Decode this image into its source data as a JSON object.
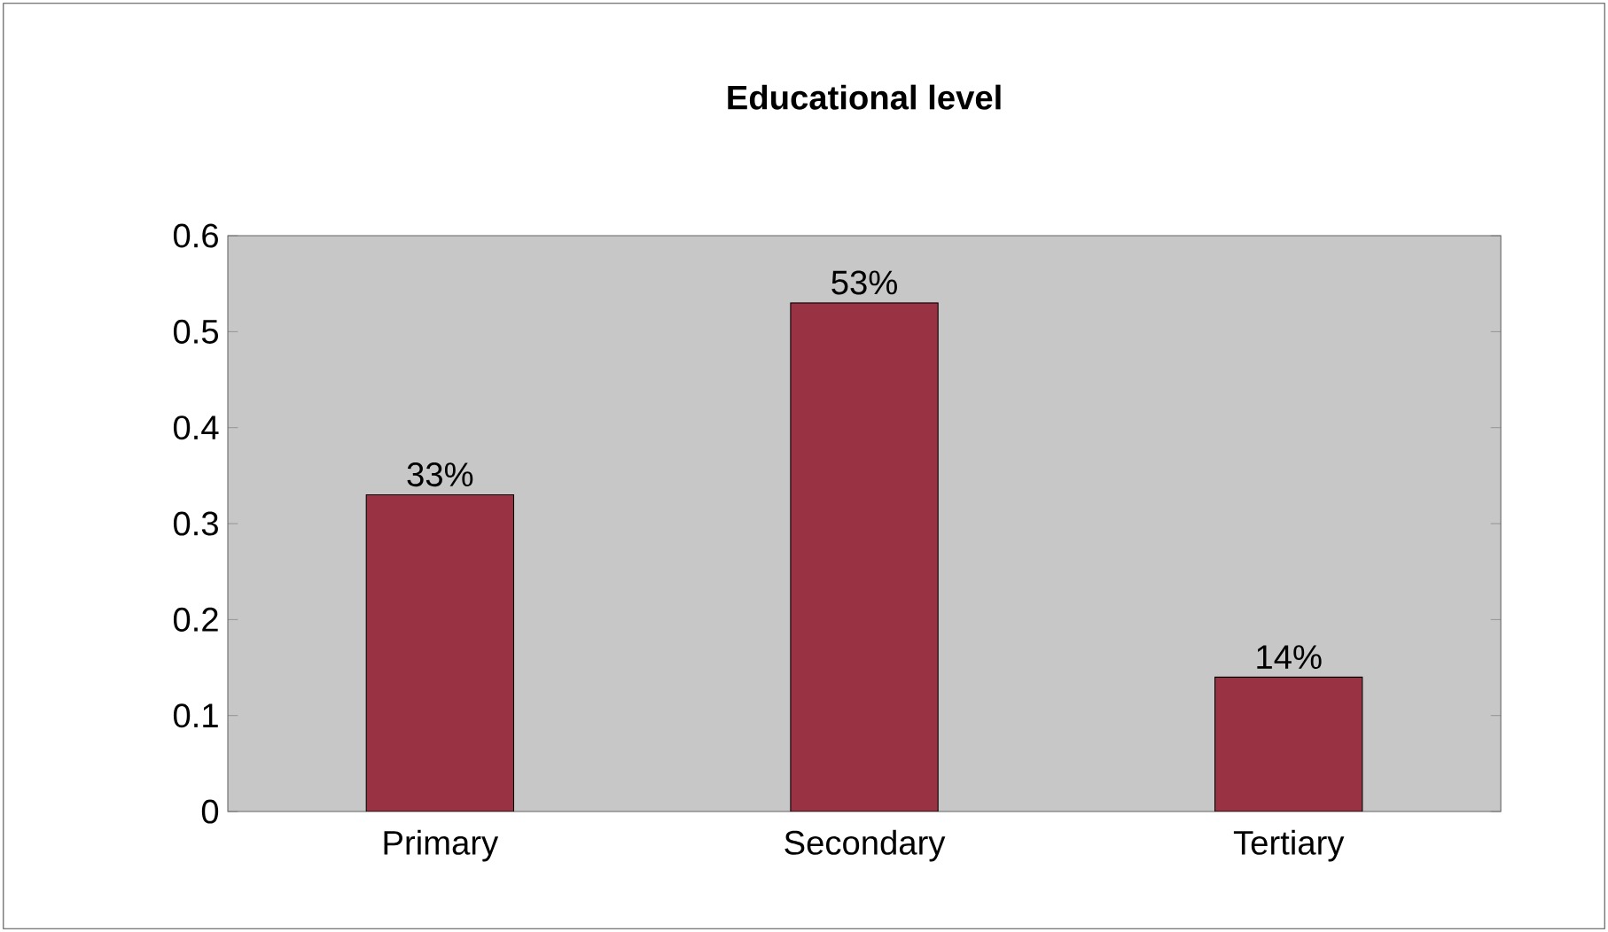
{
  "chart_data": {
    "type": "bar",
    "title": "Educational level",
    "categories": [
      "Primary",
      "Secondary",
      "Tertiary"
    ],
    "values": [
      0.33,
      0.53,
      0.14
    ],
    "color": "#993344",
    "value_labels": [
      "33%",
      "53%",
      "14%"
    ],
    "ylim": [
      0,
      0.6
    ],
    "yticks": [
      0,
      0.1,
      0.2,
      0.3,
      0.4,
      0.5,
      0.6
    ]
  }
}
